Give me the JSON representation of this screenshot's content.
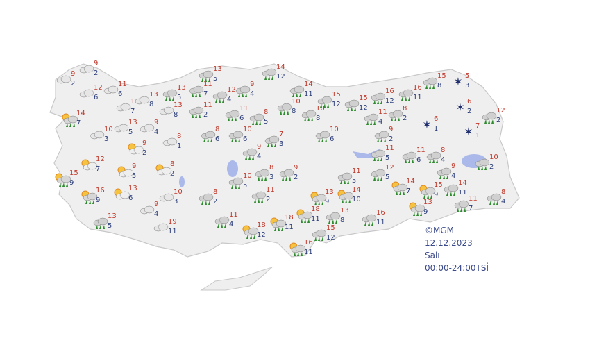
{
  "stations": [
    {
      "max": 9,
      "min": 2
    },
    {
      "max": 9,
      "min": 2
    },
    {
      "max": 12,
      "min": 6
    },
    {
      "max": 11,
      "min": 6
    },
    {
      "max": 12,
      "min": 7
    },
    {
      "max": 13,
      "min": 8
    },
    {
      "max": 13,
      "min": 5
    },
    {
      "max": 13,
      "min": 8
    },
    {
      "max": 11,
      "min": 7
    },
    {
      "max": 13,
      "min": 5
    },
    {
      "max": 12,
      "min": 4
    },
    {
      "max": 9,
      "min": 4
    },
    {
      "max": 14,
      "min": 12
    },
    {
      "max": 14,
      "min": 11
    },
    {
      "max": 15,
      "min": 12
    },
    {
      "max": 15,
      "min": 12
    },
    {
      "max": 16,
      "min": 12
    },
    {
      "max": 16,
      "min": 11
    },
    {
      "max": 15,
      "min": 8
    },
    {
      "max": 5,
      "min": 3
    },
    {
      "max": 6,
      "min": 2
    },
    {
      "max": 12,
      "min": 2
    },
    {
      "max": 6,
      "min": 1
    },
    {
      "max": 7,
      "min": 1
    },
    {
      "max": 8,
      "min": 2
    },
    {
      "max": 11,
      "min": 4
    },
    {
      "max": 9,
      "min": 2
    },
    {
      "max": 10,
      "min": 8
    },
    {
      "max": 10,
      "min": 8
    },
    {
      "max": 8,
      "min": 5
    },
    {
      "max": 11,
      "min": 6
    },
    {
      "max": 11,
      "min": 2
    },
    {
      "max": 14,
      "min": 7
    },
    {
      "max": 10,
      "min": 3
    },
    {
      "max": 13,
      "min": 5
    },
    {
      "max": 9,
      "min": 4
    },
    {
      "max": 8,
      "min": 1
    },
    {
      "max": 9,
      "min": 2
    },
    {
      "max": 8,
      "min": 6
    },
    {
      "max": 10,
      "min": 6
    },
    {
      "max": 7,
      "min": 3
    },
    {
      "max": 10,
      "min": 6
    },
    {
      "max": 12,
      "min": 7
    },
    {
      "max": 9,
      "min": 5
    },
    {
      "max": 8,
      "min": 2
    },
    {
      "max": 9,
      "min": 4
    },
    {
      "max": 8,
      "min": 3
    },
    {
      "max": 9,
      "min": 2
    },
    {
      "max": 10,
      "min": 5
    },
    {
      "max": 15,
      "min": 9
    },
    {
      "max": 16,
      "min": 9
    },
    {
      "max": 13,
      "min": 6
    },
    {
      "max": 10,
      "min": 3
    },
    {
      "max": 8,
      "min": 2
    },
    {
      "max": 11,
      "min": 2
    },
    {
      "max": 9,
      "min": 4
    },
    {
      "max": 13,
      "min": 5
    },
    {
      "max": 19,
      "min": 11
    },
    {
      "max": 11,
      "min": 4
    },
    {
      "max": 18,
      "min": 12
    },
    {
      "max": 18,
      "min": 11
    },
    {
      "max": 18,
      "min": 11
    },
    {
      "max": 13,
      "min": 8
    },
    {
      "max": 15,
      "min": 12
    },
    {
      "max": 16,
      "min": 11
    },
    {
      "max": 13,
      "min": 9
    },
    {
      "max": 14,
      "min": 10
    },
    {
      "max": 11,
      "min": 5
    },
    {
      "max": 11,
      "min": 5
    },
    {
      "max": 12,
      "min": 5
    },
    {
      "max": 16,
      "min": 11
    },
    {
      "max": 14,
      "min": 7
    },
    {
      "max": 11,
      "min": 6
    },
    {
      "max": 8,
      "min": 4
    },
    {
      "max": 9,
      "min": 4
    },
    {
      "max": 15,
      "min": 9
    },
    {
      "max": 13,
      "min": 9
    },
    {
      "max": 14,
      "min": 11
    },
    {
      "max": 11,
      "min": 7
    },
    {
      "max": 10,
      "min": 2
    },
    {
      "max": 8,
      "min": 4
    }
  ],
  "footer": {
    "copyright": "©MGM",
    "date": "12.12.2023",
    "day": "Salı",
    "time": "00:00-24:00TSİ"
  }
}
